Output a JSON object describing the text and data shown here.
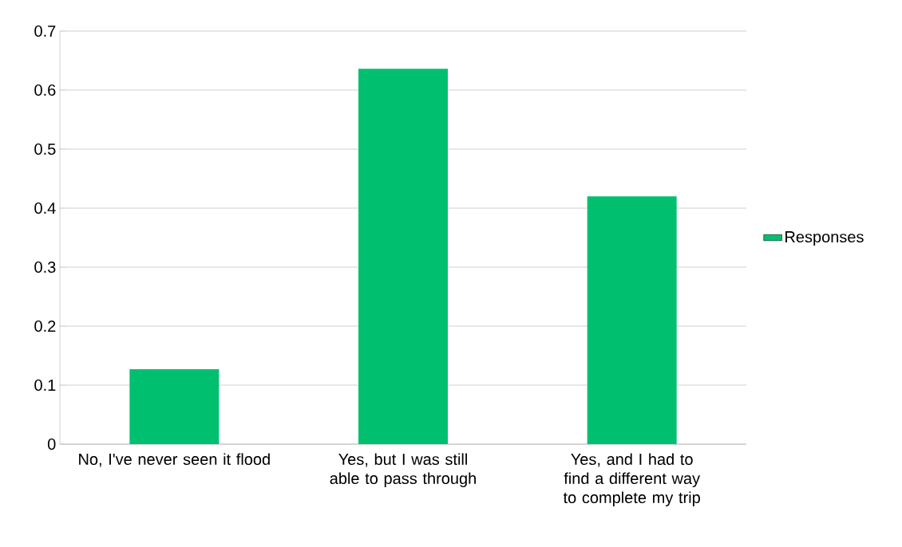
{
  "chart_data": {
    "type": "bar",
    "categories": [
      "No, I've never seen it flood",
      "Yes, but I was still able to pass through",
      "Yes, and I had to find a different way to complete my trip"
    ],
    "series": [
      {
        "name": "Responses",
        "color": "#00c070",
        "values": [
          0.127,
          0.636,
          0.42
        ]
      }
    ],
    "ylim": [
      0,
      0.7
    ],
    "yticks": [
      0,
      0.1,
      0.2,
      0.3,
      0.4,
      0.5,
      0.6,
      0.7
    ],
    "grid": "y",
    "legend": "right"
  }
}
